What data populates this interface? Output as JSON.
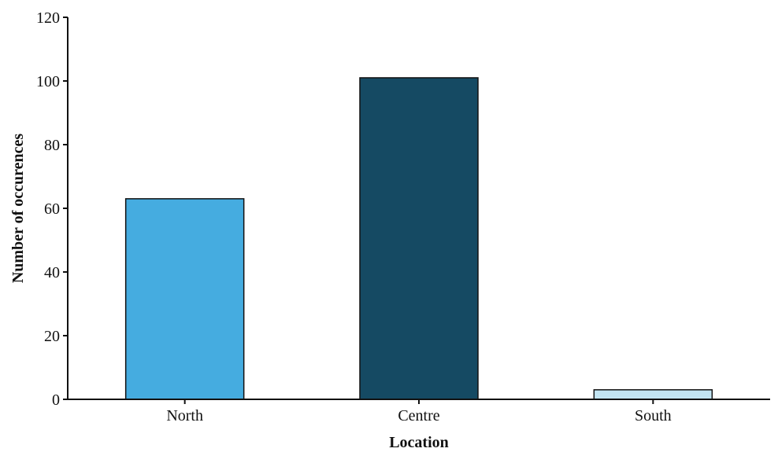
{
  "chart_data": {
    "type": "bar",
    "title": "",
    "xlabel": "Location",
    "ylabel": "Number of occurences",
    "categories": [
      "North",
      "Centre",
      "South"
    ],
    "values": [
      63,
      101,
      3
    ],
    "colors": [
      "#45ace0",
      "#154a63",
      "#c2e4f2"
    ],
    "ylim": [
      0,
      120
    ],
    "yticks": [
      "0",
      "20",
      "40",
      "60",
      "80",
      "100",
      "120"
    ],
    "grid": false,
    "legend": "none"
  }
}
